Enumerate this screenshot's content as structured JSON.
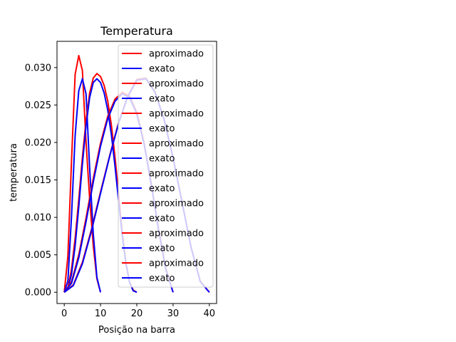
{
  "chart_data": {
    "type": "line",
    "title": "Temperatura",
    "xlabel": "Posição na barra",
    "ylabel": "temperatura",
    "xlim": [
      -2,
      42
    ],
    "ylim": [
      -0.0015,
      0.0335
    ],
    "xticks": [
      0,
      10,
      20,
      30,
      40
    ],
    "xtick_labels": [
      "0",
      "10",
      "20",
      "30",
      "40"
    ],
    "yticks": [
      0.0,
      0.005,
      0.01,
      0.015,
      0.02,
      0.025,
      0.03
    ],
    "ytick_labels": [
      "0.000",
      "0.005",
      "0.010",
      "0.015",
      "0.020",
      "0.025",
      "0.030"
    ],
    "grid": false,
    "legend_position": "upper-right",
    "legend_labels": [
      "aproximado",
      "exato",
      "aproximado",
      "exato",
      "aproximado",
      "exato",
      "aproximado",
      "exato",
      "aproximado",
      "exato",
      "aproximado",
      "exato",
      "aproximado",
      "exato",
      "aproximado",
      "exato"
    ],
    "colors": {
      "aproximado": "#ff0000",
      "exato": "#0000ff"
    },
    "series": [
      {
        "name": "aproximado",
        "color": "#ff0000",
        "x": [
          0,
          1,
          2,
          3,
          4,
          5,
          6,
          7,
          8,
          9,
          10
        ],
        "y": [
          0,
          0.0048,
          0.0175,
          0.0291,
          0.0316,
          0.0296,
          0.0201,
          0.0125,
          0.0062,
          0.0018,
          0
        ]
      },
      {
        "name": "exato",
        "color": "#0000ff",
        "x": [
          0,
          1,
          2,
          3,
          4,
          5,
          6,
          7,
          8,
          9,
          10
        ],
        "y": [
          0,
          0.0015,
          0.0101,
          0.0209,
          0.0269,
          0.0285,
          0.0265,
          0.0166,
          0.0078,
          0.002,
          0
        ]
      },
      {
        "name": "aproximado",
        "color": "#ff0000",
        "x": [
          0,
          1,
          2,
          3,
          4,
          5,
          6,
          7,
          8,
          9,
          10,
          11,
          12,
          13,
          14,
          15,
          16,
          17,
          18,
          19,
          20
        ],
        "y": [
          0,
          0.0006,
          0.0031,
          0.0072,
          0.0124,
          0.018,
          0.0229,
          0.0266,
          0.0286,
          0.0292,
          0.0288,
          0.0276,
          0.0255,
          0.0223,
          0.018,
          0.013,
          0.008,
          0.004,
          0.0014,
          0.0003,
          0
        ]
      },
      {
        "name": "exato",
        "color": "#0000ff",
        "x": [
          0,
          1,
          2,
          3,
          4,
          5,
          6,
          7,
          8,
          9,
          10,
          11,
          12,
          13,
          14,
          15,
          16,
          17,
          18,
          19,
          20
        ],
        "y": [
          0,
          0.0004,
          0.0024,
          0.0062,
          0.0114,
          0.0171,
          0.0222,
          0.026,
          0.028,
          0.0285,
          0.028,
          0.0266,
          0.0243,
          0.021,
          0.0168,
          0.0121,
          0.0075,
          0.0038,
          0.0013,
          0.0002,
          0
        ]
      },
      {
        "name": "aproximado",
        "color": "#ff0000",
        "x": [
          0,
          2,
          4,
          6,
          8,
          10,
          12,
          14,
          16,
          18,
          20,
          22,
          24,
          26,
          28,
          30
        ],
        "y": [
          0,
          0.0014,
          0.005,
          0.0099,
          0.0152,
          0.0199,
          0.0235,
          0.0258,
          0.0267,
          0.0262,
          0.024,
          0.02,
          0.0145,
          0.0085,
          0.0032,
          0
        ]
      },
      {
        "name": "exato",
        "color": "#0000ff",
        "x": [
          0,
          2,
          4,
          6,
          8,
          10,
          12,
          14,
          16,
          18,
          20,
          22,
          24,
          26,
          28,
          30
        ],
        "y": [
          0,
          0.0012,
          0.0046,
          0.0094,
          0.0147,
          0.0195,
          0.0232,
          0.0255,
          0.0265,
          0.026,
          0.0238,
          0.0198,
          0.0143,
          0.0083,
          0.003,
          0
        ]
      },
      {
        "name": "aproximado",
        "color": "#ff0000",
        "x": [
          0,
          2.5,
          5,
          7.5,
          10,
          12.5,
          15,
          17.5,
          20,
          22.5,
          25,
          27.5,
          30,
          32.5,
          35,
          37.5,
          40
        ],
        "y": [
          0,
          0.001,
          0.004,
          0.0084,
          0.0134,
          0.0182,
          0.0227,
          0.0262,
          0.0284,
          0.0286,
          0.0268,
          0.0232,
          0.018,
          0.012,
          0.006,
          0.0015,
          0
        ]
      },
      {
        "name": "exato",
        "color": "#0000ff",
        "x": [
          0,
          2.5,
          5,
          7.5,
          10,
          12.5,
          15,
          17.5,
          20,
          22.5,
          25,
          27.5,
          30,
          32.5,
          35,
          37.5,
          40
        ],
        "y": [
          0,
          0.0009,
          0.0038,
          0.0082,
          0.0132,
          0.0181,
          0.0226,
          0.0261,
          0.0283,
          0.0285,
          0.0267,
          0.0231,
          0.0179,
          0.0119,
          0.0059,
          0.0014,
          0
        ]
      }
    ]
  }
}
